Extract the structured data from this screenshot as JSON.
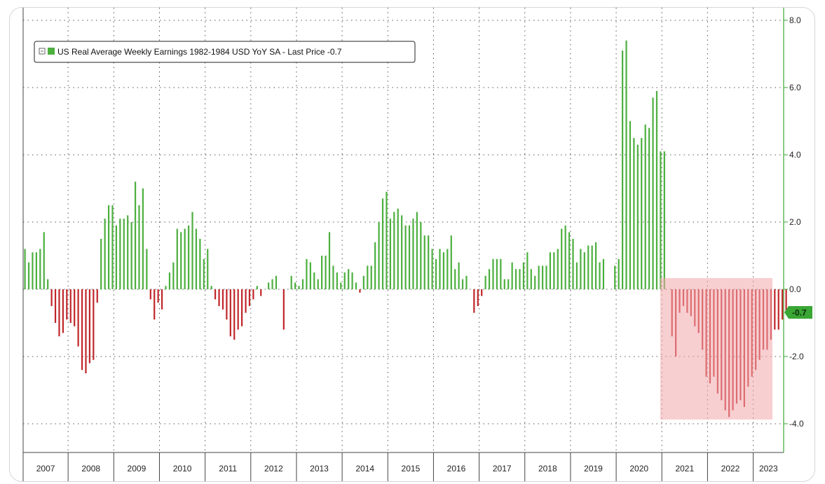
{
  "chart_data": {
    "type": "bar",
    "title": "",
    "legend": {
      "label": "US Real Average Weekly Earnings 1982-1984 USD YoY SA - Last Price -0.7",
      "placement": "top-left"
    },
    "last_price_label": "-0.7",
    "ylim": [
      -4.8,
      8.4
    ],
    "yticks": [
      "8.0",
      "6.0",
      "4.0",
      "2.0",
      "0.0",
      "-2.0",
      "-4.0"
    ],
    "ytick_values": [
      8,
      6,
      4,
      2,
      0,
      -2,
      -4
    ],
    "years": [
      "2007",
      "2008",
      "2009",
      "2010",
      "2011",
      "2012",
      "2013",
      "2014",
      "2015",
      "2016",
      "2017",
      "2018",
      "2019",
      "2020",
      "2021",
      "2022",
      "2023"
    ],
    "colors": {
      "positive": "#4caf3e",
      "negative": "#c0262a",
      "axis": "#3aa635",
      "highlight": "#f2a7ab"
    },
    "series": [
      {
        "x_start": "2007-01",
        "frequency": "monthly",
        "values": [
          1.2,
          0.8,
          1.1,
          1.1,
          1.2,
          1.7,
          0.3,
          -0.5,
          -1.0,
          -1.4,
          -1.3,
          -0.9,
          -1.0,
          -1.1,
          -1.7,
          -2.4,
          -2.5,
          -2.2,
          -2.1,
          -0.4,
          1.5,
          2.1,
          2.5,
          2.5,
          1.9,
          2.1,
          2.1,
          2.2,
          2.0,
          3.2,
          2.5,
          3.0,
          1.2,
          -0.3,
          -0.9,
          -0.4,
          -0.6,
          0.1,
          0.5,
          0.8,
          1.8,
          1.7,
          1.8,
          1.9,
          2.3,
          1.8,
          1.5,
          0.9,
          1.2,
          0.1,
          -0.3,
          -0.5,
          -0.6,
          -0.9,
          -1.4,
          -1.5,
          -1.2,
          -1.1,
          -0.7,
          -0.5,
          -0.3,
          0.1,
          -0.2,
          0.0,
          0.2,
          0.3,
          0.4,
          0.0,
          -1.2,
          0.0,
          0.4,
          0.2,
          0.1,
          0.3,
          0.9,
          0.8,
          0.5,
          0.3,
          1.0,
          1.0,
          1.7,
          0.7,
          0.5,
          0.2,
          0.5,
          0.6,
          0.5,
          0.2,
          -0.1,
          0.4,
          0.7,
          0.7,
          1.4,
          2.0,
          2.7,
          2.9,
          2.1,
          2.3,
          2.4,
          2.2,
          1.9,
          1.9,
          2.1,
          2.3,
          2.0,
          1.6,
          1.6,
          1.2,
          0.9,
          1.2,
          1.1,
          1.2,
          1.6,
          0.6,
          0.8,
          0.3,
          0.4,
          0.0,
          -0.7,
          -0.5,
          -0.2,
          0.4,
          0.6,
          0.9,
          0.9,
          0.9,
          0.3,
          0.3,
          0.8,
          0.6,
          0.6,
          0.8,
          1.1,
          0.6,
          0.4,
          0.7,
          0.7,
          0.7,
          1.1,
          1.1,
          1.2,
          1.8,
          1.9,
          1.7,
          1.5,
          0.8,
          1.2,
          1.1,
          1.3,
          1.3,
          1.4,
          0.8,
          0.9,
          0.0,
          0.0,
          0.7,
          0.9,
          7.1,
          7.4,
          5.0,
          4.5,
          4.3,
          4.5,
          4.9,
          4.8,
          5.7,
          5.9,
          4.1,
          4.1,
          0.0,
          -1.4,
          -2.0,
          -0.7,
          -0.5,
          -0.7,
          -0.8,
          -1.1,
          -1.3,
          -1.8,
          -2.6,
          -2.8,
          -2.6,
          -3.1,
          -3.3,
          -3.6,
          -3.8,
          -3.6,
          -3.4,
          -3.3,
          -3.5,
          -2.9,
          -2.6,
          -2.4,
          -2.1,
          -1.8,
          -1.8,
          -1.5,
          -1.2,
          -1.2,
          -0.9,
          -0.7
        ]
      }
    ]
  }
}
